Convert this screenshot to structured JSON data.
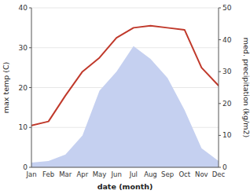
{
  "chart_data": {
    "type": "line",
    "x_label": "date (month)",
    "y_label": "max temp (C)",
    "y2_label": "med. precipitation (kg/m2)",
    "categories": [
      "Jan",
      "Feb",
      "Mar",
      "Apr",
      "May",
      "Jun",
      "Jul",
      "Aug",
      "Sep",
      "Oct",
      "Nov",
      "Dec"
    ],
    "series": [
      {
        "type": "area",
        "axis": "y2",
        "color": "#c5d0f0",
        "values": [
          1.5,
          2.0,
          4.0,
          10.0,
          24.0,
          30.0,
          38.0,
          34.0,
          28.0,
          18.0,
          6.0,
          2.0
        ]
      },
      {
        "type": "line",
        "color": "#c0392b",
        "values": [
          10.5,
          11.5,
          18.0,
          24.0,
          27.5,
          32.5,
          35.0,
          35.5,
          35.0,
          34.5,
          25.0,
          20.5
        ]
      }
    ],
    "ylim": [
      0,
      40
    ],
    "yticks": [
      0,
      10,
      20,
      30,
      40
    ],
    "y2lim": [
      0,
      50
    ],
    "y2ticks": [
      0,
      10,
      20,
      30,
      40,
      50
    ],
    "grid": true
  }
}
